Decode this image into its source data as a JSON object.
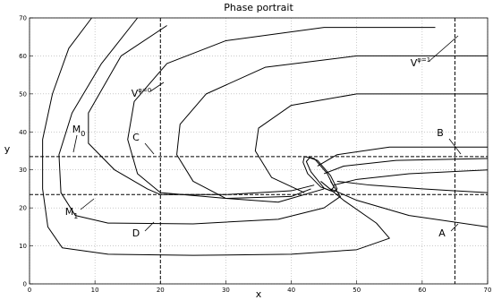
{
  "chart_data": {
    "type": "line",
    "title": "Phase portrait",
    "xlabel": "x",
    "ylabel": "y",
    "xlim": [
      0,
      70
    ],
    "ylim": [
      0,
      70
    ],
    "xticks": [
      0,
      10,
      20,
      30,
      40,
      50,
      60,
      70
    ],
    "yticks": [
      0,
      10,
      20,
      30,
      40,
      50,
      60,
      70
    ],
    "grid": true,
    "color": "#000000",
    "vlines": [
      20,
      65
    ],
    "hlines": [
      23.5,
      33.5
    ],
    "annotations": [
      {
        "text": "V",
        "sup": "φ=0"
      },
      {
        "text": "V",
        "sup": "φ=1"
      },
      {
        "text": "M",
        "sub": "0"
      },
      {
        "text": "M",
        "sub": "1"
      },
      {
        "text": "A"
      },
      {
        "text": "B"
      },
      {
        "text": "C"
      },
      {
        "text": "D"
      }
    ],
    "series": [
      {
        "x": [
          9.5,
          6,
          3.5,
          2,
          2,
          2.8,
          5,
          12,
          25,
          40,
          50,
          55,
          53,
          48,
          44.5
        ],
        "values": [
          70,
          62,
          50,
          38,
          25,
          15,
          9.5,
          7.8,
          7.5,
          7.8,
          9,
          12,
          16,
          22,
          27
        ]
      },
      {
        "x": [
          16.5,
          11,
          6.5,
          4.5,
          4.8,
          7,
          12,
          25,
          38,
          45,
          47.5,
          46
        ],
        "values": [
          70,
          58,
          45,
          34,
          24,
          18,
          16,
          15.8,
          17,
          20,
          23,
          27
        ]
      },
      {
        "x": [
          21,
          14,
          9,
          9,
          13,
          18,
          20,
          30,
          40,
          43.5
        ],
        "values": [
          68,
          60,
          45,
          37,
          30,
          25,
          23.5,
          23.5,
          24.5,
          26
        ]
      },
      {
        "x": [
          62,
          45,
          30,
          21,
          16,
          15,
          16.5,
          20,
          30,
          40,
          43
        ],
        "values": [
          67.5,
          67.5,
          64,
          58,
          48,
          38,
          29,
          24,
          22.5,
          23,
          25
        ]
      },
      {
        "x": [
          70,
          50,
          36,
          27,
          23,
          22.5,
          25,
          30,
          38,
          45
        ],
        "values": [
          60,
          60,
          57,
          50,
          42,
          34,
          27,
          22.5,
          21.5,
          25
        ]
      },
      {
        "x": [
          70,
          50,
          40,
          35,
          34.5,
          37,
          42
        ],
        "values": [
          50,
          50,
          47,
          41,
          35,
          28,
          24
        ]
      },
      {
        "x": [
          70,
          55,
          47,
          44
        ],
        "values": [
          36,
          36,
          34,
          31
        ]
      },
      {
        "x": [
          70,
          56,
          48,
          45
        ],
        "values": [
          33,
          32.5,
          31,
          29
        ]
      },
      {
        "x": [
          70,
          58,
          50,
          46.5
        ],
        "values": [
          30,
          29,
          27.5,
          26
        ]
      },
      {
        "x": [
          70,
          60,
          52,
          47
        ],
        "values": [
          24,
          25,
          26,
          27
        ]
      },
      {
        "x": [
          70,
          58,
          50,
          46
        ],
        "values": [
          15,
          18,
          22,
          25
        ]
      },
      {
        "x": [
          42,
          43.5,
          45.5,
          46.5,
          46,
          44.5,
          42.5,
          41.8,
          42
        ],
        "values": [
          33.5,
          33,
          29,
          25.5,
          24.5,
          25.5,
          29,
          32,
          33.5
        ]
      },
      {
        "x": [
          42.8,
          44,
          46,
          47,
          46.5,
          45,
          43,
          42.3,
          42.8
        ],
        "values": [
          33.2,
          32.5,
          28.5,
          25,
          24.2,
          25.2,
          29.5,
          32.2,
          33.2
        ]
      }
    ]
  }
}
